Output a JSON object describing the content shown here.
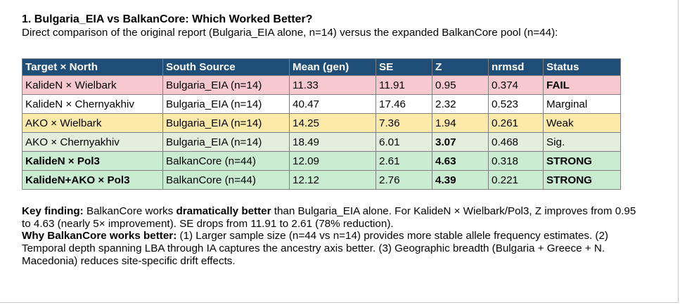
{
  "heading": "1. Bulgaria_EIA vs BalkanCore: Which Worked Better?",
  "subtitle": "Direct comparison of the original report (Bulgaria_EIA alone, n=14) versus the expanded BalkanCore pool (n=44):",
  "table": {
    "headers": [
      "Target × North",
      "South Source",
      "Mean (gen)",
      "SE",
      "Z",
      "nrmsd",
      "Status"
    ],
    "rows": [
      {
        "target": "KalideN × Wielbark",
        "source": "Bulgaria_EIA (n=14)",
        "mean": "11.33",
        "se": "11.91",
        "z": "0.95",
        "nrmsd": "0.374",
        "status": "FAIL"
      },
      {
        "target": "KalideN × Chernyakhiv",
        "source": "Bulgaria_EIA (n=14)",
        "mean": "40.47",
        "se": "17.46",
        "z": "2.32",
        "nrmsd": "0.523",
        "status": "Marginal"
      },
      {
        "target": "AKO × Wielbark",
        "source": "Bulgaria_EIA (n=14)",
        "mean": "14.25",
        "se": "7.36",
        "z": "1.94",
        "nrmsd": "0.261",
        "status": "Weak"
      },
      {
        "target": "AKO × Chernyakhiv",
        "source": "Bulgaria_EIA (n=14)",
        "mean": "18.49",
        "se": "6.01",
        "z": "3.07",
        "nrmsd": "0.468",
        "status": "Sig."
      },
      {
        "target": "KalideN × Pol3",
        "source": "BalkanCore (n=44)",
        "mean": "12.09",
        "se": "2.61",
        "z": "4.63",
        "nrmsd": "0.318",
        "status": "STRONG"
      },
      {
        "target": "KalideN+AKO × Pol3",
        "source": "BalkanCore (n=44)",
        "mean": "12.12",
        "se": "2.76",
        "z": "4.39",
        "nrmsd": "0.221",
        "status": "STRONG"
      }
    ]
  },
  "notes": {
    "p1_label": "Key finding:",
    "p1_a": "BalkanCore works",
    "p1_bold": "dramatically better",
    "p1_b": "than Bulgaria_EIA alone. For KalideN × Wielbark/Pol3, Z improves from 0.95 to 4.63 (nearly 5× improvement). SE drops from 11.91 to 2.61 (78% reduction).",
    "p2_label": "Why BalkanCore works better:",
    "p2_text": "(1) Larger sample size (n=44 vs n=14) provides more stable allele frequency estimates. (2) Temporal depth spanning LBA through IA captures the ancestry axis better. (3) Geographic breadth (Bulgaria + Greece + N. Macedonia) reduces site-specific drift effects."
  }
}
